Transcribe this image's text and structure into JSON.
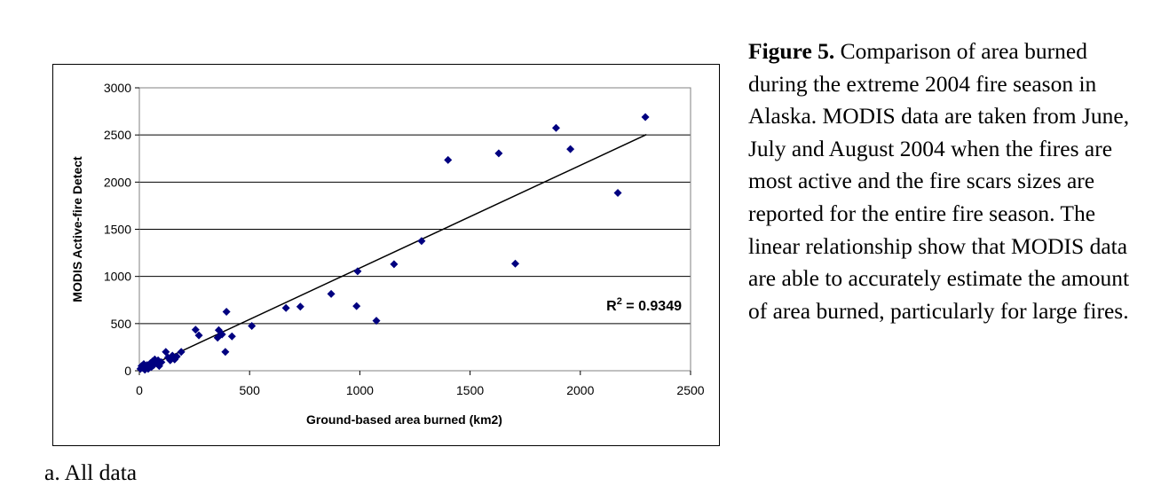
{
  "figure": {
    "label": "Figure 5.",
    "caption": " Comparison of area burned during the extreme 2004 fire season in Alaska.  MODIS data are taken from June, July and August 2004 when the fires are most active and the fire scars sizes are reported for the entire fire season.  The linear relationship show that MODIS data are able to accurately estimate the amount of area burned, particularly for large fires.",
    "subcaption": "a.  All data"
  },
  "chart_data": {
    "type": "scatter",
    "xlabel": "Ground-based area burned (km2)",
    "ylabel": "MODIS Active-fire Detect",
    "xlim": [
      0,
      2500
    ],
    "ylim": [
      0,
      3000
    ],
    "x_ticks": [
      "0",
      "500",
      "1000",
      "1500",
      "2000",
      "2500"
    ],
    "y_ticks": [
      "0",
      "500",
      "1000",
      "1500",
      "2000",
      "2500",
      "3000"
    ],
    "grid": "horizontal",
    "marker_color": "#000080",
    "annotation": {
      "prefix": "R",
      "superscript": "2",
      "suffix": " = 0.9349"
    },
    "trendline": {
      "x": [
        0,
        2300
      ],
      "y": [
        0,
        2505
      ]
    },
    "points": [
      {
        "x": 5,
        "y": 20
      },
      {
        "x": 10,
        "y": 50
      },
      {
        "x": 15,
        "y": 30
      },
      {
        "x": 20,
        "y": 70
      },
      {
        "x": 25,
        "y": 10
      },
      {
        "x": 30,
        "y": 40
      },
      {
        "x": 35,
        "y": 60
      },
      {
        "x": 40,
        "y": 20
      },
      {
        "x": 45,
        "y": 50
      },
      {
        "x": 50,
        "y": 80
      },
      {
        "x": 55,
        "y": 40
      },
      {
        "x": 60,
        "y": 100
      },
      {
        "x": 65,
        "y": 60
      },
      {
        "x": 70,
        "y": 120
      },
      {
        "x": 80,
        "y": 80
      },
      {
        "x": 85,
        "y": 110
      },
      {
        "x": 90,
        "y": 50
      },
      {
        "x": 100,
        "y": 90
      },
      {
        "x": 120,
        "y": 200
      },
      {
        "x": 130,
        "y": 140
      },
      {
        "x": 140,
        "y": 110
      },
      {
        "x": 150,
        "y": 160
      },
      {
        "x": 160,
        "y": 120
      },
      {
        "x": 170,
        "y": 150
      },
      {
        "x": 190,
        "y": 200
      },
      {
        "x": 255,
        "y": 435
      },
      {
        "x": 270,
        "y": 375
      },
      {
        "x": 355,
        "y": 350
      },
      {
        "x": 360,
        "y": 430
      },
      {
        "x": 375,
        "y": 385
      },
      {
        "x": 390,
        "y": 200
      },
      {
        "x": 395,
        "y": 625
      },
      {
        "x": 420,
        "y": 365
      },
      {
        "x": 510,
        "y": 475
      },
      {
        "x": 665,
        "y": 665
      },
      {
        "x": 730,
        "y": 680
      },
      {
        "x": 870,
        "y": 815
      },
      {
        "x": 985,
        "y": 685
      },
      {
        "x": 990,
        "y": 1055
      },
      {
        "x": 1075,
        "y": 530
      },
      {
        "x": 1155,
        "y": 1130
      },
      {
        "x": 1280,
        "y": 1375
      },
      {
        "x": 1400,
        "y": 2235
      },
      {
        "x": 1630,
        "y": 2305
      },
      {
        "x": 1705,
        "y": 1135
      },
      {
        "x": 1890,
        "y": 2575
      },
      {
        "x": 1955,
        "y": 2350
      },
      {
        "x": 2170,
        "y": 1885
      },
      {
        "x": 2295,
        "y": 2690
      }
    ]
  }
}
